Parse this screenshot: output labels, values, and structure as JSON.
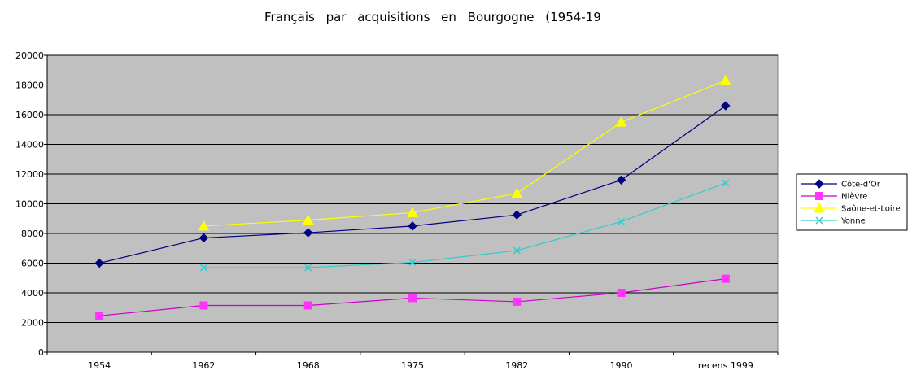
{
  "chart_data": {
    "type": "line",
    "title": "Français   par   acquisitions   en   Bourgogne   (1954-19",
    "categories": [
      "1954",
      "1962",
      "1968",
      "1975",
      "1982",
      "1990",
      "recens 1999"
    ],
    "yticks": [
      "0",
      "2000",
      "4000",
      "6000",
      "8000",
      "10000",
      "12000",
      "14000",
      "16000",
      "18000",
      "20000"
    ],
    "ylim": [
      0,
      20000
    ],
    "grid": true,
    "legend_position": "right",
    "plot_background": "#c0c0c0",
    "series": [
      {
        "name": "Côte-d'Or",
        "color": "#000080",
        "marker": "diamond",
        "values": [
          6000,
          7700,
          8050,
          8500,
          9250,
          11600,
          16600
        ]
      },
      {
        "name": "Nièvre",
        "color": "#ff33ff",
        "line_color": "#cc00cc",
        "marker": "square",
        "values": [
          2450,
          3150,
          3150,
          3650,
          3400,
          4000,
          4950
        ]
      },
      {
        "name": "Saône-et-Loire",
        "color": "#ffff00",
        "marker": "triangle",
        "values": [
          null,
          8500,
          8900,
          9400,
          10700,
          15500,
          18300
        ]
      },
      {
        "name": "Yonne",
        "color": "#33cccc",
        "marker": "x",
        "values": [
          null,
          5700,
          5700,
          6050,
          6850,
          8800,
          11400
        ]
      }
    ]
  }
}
